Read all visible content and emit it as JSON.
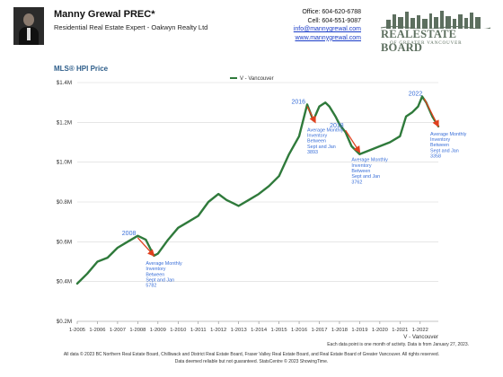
{
  "header": {
    "agent_name": "Manny Grewal PREC*",
    "agent_title": "Residential Real Estate Expert - Oakwyn Realty Ltd",
    "office": "Office: 604-620-6788",
    "cell": "Cell: 604-551-9087",
    "email": "info@mannygrewal.com",
    "website": "www.mannygrewal.com",
    "logo_main": "REALESTATE BOARD",
    "logo_sub": "OF GREATER VANCOUVER"
  },
  "chart_data": {
    "type": "line",
    "title": "MLS® HPI Price",
    "legend_label": "V - Vancouver",
    "legend_position": "top",
    "ylim": [
      200000,
      1400000
    ],
    "y_ticks": [
      200000,
      400000,
      600000,
      800000,
      1000000,
      1200000,
      1400000
    ],
    "y_tick_labels": [
      "$0.2M",
      "$0.4M",
      "$0.6M",
      "$0.8M",
      "$1.0M",
      "$1.2M",
      "$1.4M"
    ],
    "x_tick_labels": [
      "1-2005",
      "1-2006",
      "1-2007",
      "1-2008",
      "1-2009",
      "1-2010",
      "1-2011",
      "1-2012",
      "1-2013",
      "1-2014",
      "1-2015",
      "1-2016",
      "1-2017",
      "1-2018",
      "1-2019",
      "1-2020",
      "1-2021",
      "1-2022"
    ],
    "x_axis_label": "V - Vancouver",
    "grid": true,
    "color": "#2f7a3b",
    "series": [
      {
        "name": "V - Vancouver",
        "x": [
          2005.0,
          2005.5,
          2006.0,
          2006.5,
          2007.0,
          2007.5,
          2008.0,
          2008.4,
          2008.8,
          2009.0,
          2009.5,
          2010.0,
          2010.5,
          2011.0,
          2011.5,
          2012.0,
          2012.4,
          2012.8,
          2013.0,
          2013.5,
          2014.0,
          2014.5,
          2015.0,
          2015.5,
          2016.0,
          2016.4,
          2016.7,
          2017.0,
          2017.3,
          2017.5,
          2017.8,
          2018.0,
          2018.3,
          2018.6,
          2019.0,
          2019.5,
          2020.0,
          2020.5,
          2021.0,
          2021.3,
          2021.6,
          2021.9,
          2022.1,
          2022.3,
          2022.6,
          2022.9
        ],
        "y": [
          390000,
          440000,
          500000,
          520000,
          570000,
          600000,
          630000,
          610000,
          530000,
          540000,
          610000,
          670000,
          700000,
          730000,
          800000,
          840000,
          810000,
          790000,
          780000,
          810000,
          840000,
          880000,
          930000,
          1040000,
          1130000,
          1290000,
          1210000,
          1280000,
          1300000,
          1280000,
          1230000,
          1190000,
          1150000,
          1080000,
          1040000,
          1060000,
          1080000,
          1100000,
          1130000,
          1230000,
          1250000,
          1280000,
          1330000,
          1300000,
          1230000,
          1180000
        ]
      }
    ],
    "annotations": [
      {
        "year": "2008",
        "arrow_from": [
          2008.0,
          620000
        ],
        "arrow_to": [
          2008.8,
          530000
        ],
        "lines": [
          "Average Monthly",
          "Inventory",
          "Between",
          "Sept and Jan",
          "5782"
        ]
      },
      {
        "year": "2016",
        "arrow_from": [
          2016.4,
          1280000
        ],
        "arrow_to": [
          2016.8,
          1200000
        ],
        "lines": [
          "Average Monthly",
          "Inventory",
          "Between",
          "Sept and Jan",
          "3893"
        ]
      },
      {
        "year": "2018",
        "arrow_from": [
          2018.3,
          1160000
        ],
        "arrow_to": [
          2019.0,
          1050000
        ],
        "lines": [
          "Average Monthly",
          "Inventory",
          "Between",
          "Sept and Jan",
          "3762"
        ]
      },
      {
        "year": "2022",
        "arrow_from": [
          2022.2,
          1320000
        ],
        "arrow_to": [
          2022.9,
          1180000
        ],
        "lines": [
          "Average Monthly",
          "Inventory",
          "Between",
          "Sept and Jan",
          "3358"
        ]
      }
    ]
  },
  "footer": {
    "note": "Each data point is one month of activity. Data is from January 27, 2023.",
    "disclaimer": "All data © 2023 BC Northern Real Estate Board, Chilliwack and District Real Estate Board, Fraser Valley Real Estate Board, and Real Estate Board of Greater Vancouver. All rights reserved.",
    "reliability": "Data deemed reliable but not guaranteed. StatsCentre © 2023 ShowingTime."
  }
}
